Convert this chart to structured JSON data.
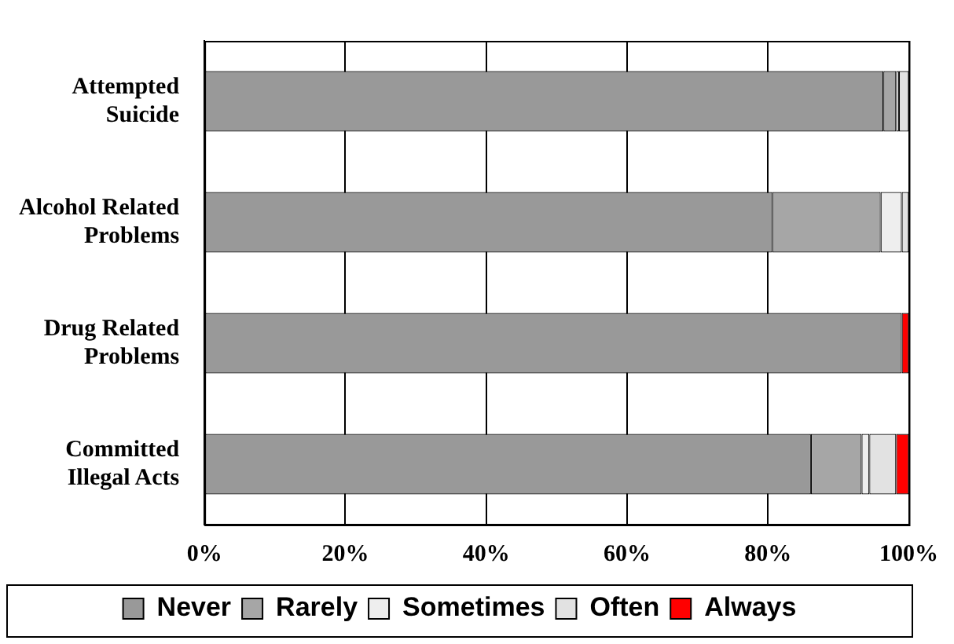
{
  "chart_data": {
    "type": "bar",
    "orientation": "horizontal",
    "stacked": true,
    "categories": [
      "Attempted Suicide",
      "Alcohol Related Problems",
      "Drug Related Problems",
      "Committed Illegal Acts"
    ],
    "series": [
      {
        "name": "Never",
        "color": "#999999",
        "values": [
          96.4,
          80.6,
          99.0,
          86.1
        ]
      },
      {
        "name": "Rarely",
        "color": "#a6a6a6",
        "values": [
          1.8,
          15.4,
          0,
          7.2
        ]
      },
      {
        "name": "Sometimes",
        "color": "#eeeeee",
        "values": [
          0.4,
          3.0,
          0,
          1.1
        ]
      },
      {
        "name": "Often",
        "color": "#e2e2e2",
        "values": [
          1.4,
          1.0,
          0,
          3.8
        ]
      },
      {
        "name": "Always",
        "color": "#ff0000",
        "values": [
          0,
          0,
          1.0,
          1.8
        ]
      }
    ],
    "xlim": [
      0,
      100
    ],
    "xticks": [
      {
        "value": 0,
        "label": "0%"
      },
      {
        "value": 20,
        "label": "20%"
      },
      {
        "value": 40,
        "label": "40%"
      },
      {
        "value": 60,
        "label": "60%"
      },
      {
        "value": 80,
        "label": "80%"
      },
      {
        "value": 100,
        "label": "100%"
      }
    ],
    "grid": "x",
    "legend": "bottom"
  }
}
